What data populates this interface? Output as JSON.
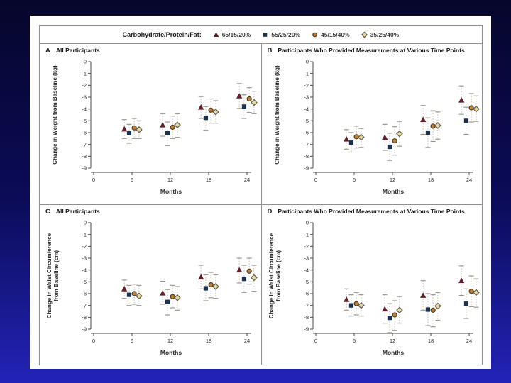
{
  "slide": {
    "background_top_color": "#06062c",
    "background_bottom_color": "#2323b8",
    "card_color": "#fefefe"
  },
  "legend": {
    "label": "Carbohydrate/Protein/Fat:",
    "items": [
      {
        "label": "65/15/20%",
        "marker": "triangle",
        "fill": "#60222a",
        "stroke": "#60222a"
      },
      {
        "label": "55/25/20%",
        "marker": "square",
        "fill": "#1c3350",
        "stroke": "#1c3350"
      },
      {
        "label": "45/15/40%",
        "marker": "circle",
        "fill": "#c08136",
        "stroke": "#4e3b1c"
      },
      {
        "label": "35/25/40%",
        "marker": "diamond",
        "fill": "#e6d9a4",
        "stroke": "#615c4b"
      }
    ]
  },
  "chart_data": [
    {
      "type": "scatter",
      "letter": "A",
      "title": "All Participants",
      "ylabel_lines": [
        "Change in Weight from Baseline (kg)"
      ],
      "xlabel": "Months",
      "ylim": [
        0,
        -9
      ],
      "yticks": [
        0,
        -1,
        -2,
        -3,
        -4,
        -5,
        -6,
        -7,
        -8,
        -9
      ],
      "xticks": [
        0,
        6,
        12,
        18,
        24
      ],
      "x": [
        6,
        12,
        18,
        24
      ],
      "series": [
        {
          "name": "65/15/20%",
          "points": [
            {
              "y": -5.7,
              "lo": -6.5,
              "hi": -4.9
            },
            {
              "y": -5.35,
              "lo": -6.3,
              "hi": -4.4
            },
            {
              "y": -3.85,
              "lo": -4.8,
              "hi": -2.95
            },
            {
              "y": -2.9,
              "lo": -3.95,
              "hi": -1.85
            }
          ]
        },
        {
          "name": "55/25/20%",
          "points": [
            {
              "y": -6.05,
              "lo": -6.9,
              "hi": -5.3
            },
            {
              "y": -6.05,
              "lo": -7.1,
              "hi": -5.1
            },
            {
              "y": -4.75,
              "lo": -5.8,
              "hi": -3.8
            },
            {
              "y": -3.8,
              "lo": -4.8,
              "hi": -2.8
            }
          ]
        },
        {
          "name": "45/15/40%",
          "points": [
            {
              "y": -5.6,
              "lo": -6.5,
              "hi": -4.8
            },
            {
              "y": -5.55,
              "lo": -6.5,
              "hi": -4.6
            },
            {
              "y": -4.1,
              "lo": -5.2,
              "hi": -3.15
            },
            {
              "y": -3.15,
              "lo": -4.3,
              "hi": -2.2
            }
          ]
        },
        {
          "name": "35/25/40%",
          "points": [
            {
              "y": -5.75,
              "lo": -6.5,
              "hi": -5.0
            },
            {
              "y": -5.35,
              "lo": -6.4,
              "hi": -4.4
            },
            {
              "y": -4.25,
              "lo": -5.2,
              "hi": -3.3
            },
            {
              "y": -3.45,
              "lo": -4.4,
              "hi": -2.5
            }
          ]
        }
      ]
    },
    {
      "type": "scatter",
      "letter": "B",
      "title": "Participants Who Provided Measurements at Various Time Points",
      "ylabel_lines": [
        "Change in Weight from Baseline (kg)"
      ],
      "xlabel": "Months",
      "ylim": [
        0,
        -9
      ],
      "yticks": [
        0,
        -1,
        -2,
        -3,
        -4,
        -5,
        -6,
        -7,
        -8,
        -9
      ],
      "xticks": [
        0,
        6,
        12,
        18,
        24
      ],
      "x": [
        6,
        12,
        18,
        24
      ],
      "series": [
        {
          "name": "65/15/20%",
          "points": [
            {
              "y": -6.55,
              "lo": -7.4,
              "hi": -5.75
            },
            {
              "y": -6.4,
              "lo": -7.5,
              "hi": -5.3
            },
            {
              "y": -4.9,
              "lo": -6.15,
              "hi": -3.7
            },
            {
              "y": -3.25,
              "lo": -4.45,
              "hi": -2.05
            }
          ]
        },
        {
          "name": "55/25/20%",
          "points": [
            {
              "y": -6.85,
              "lo": -7.65,
              "hi": -6.0
            },
            {
              "y": -7.2,
              "lo": -8.35,
              "hi": -6.05
            },
            {
              "y": -6.0,
              "lo": -7.25,
              "hi": -4.75
            },
            {
              "y": -5.0,
              "lo": -6.15,
              "hi": -3.85
            }
          ]
        },
        {
          "name": "45/15/40%",
          "points": [
            {
              "y": -6.35,
              "lo": -7.3,
              "hi": -5.45
            },
            {
              "y": -6.7,
              "lo": -7.9,
              "hi": -5.5
            },
            {
              "y": -5.45,
              "lo": -6.75,
              "hi": -4.15
            },
            {
              "y": -3.9,
              "lo": -5.1,
              "hi": -2.7
            }
          ]
        },
        {
          "name": "35/25/40%",
          "points": [
            {
              "y": -6.4,
              "lo": -7.25,
              "hi": -5.65
            },
            {
              "y": -6.1,
              "lo": -7.15,
              "hi": -5.05
            },
            {
              "y": -5.4,
              "lo": -6.55,
              "hi": -4.25
            },
            {
              "y": -4.0,
              "lo": -5.05,
              "hi": -2.9
            }
          ]
        }
      ]
    },
    {
      "type": "scatter",
      "letter": "C",
      "title": "All Participants",
      "ylabel_lines": [
        "Change in Waist Circumference",
        "from Baseline (cm)"
      ],
      "xlabel": "Months",
      "ylim": [
        0,
        -9
      ],
      "yticks": [
        0,
        -1,
        -2,
        -3,
        -4,
        -5,
        -6,
        -7,
        -8,
        -9
      ],
      "xticks": [
        0,
        6,
        12,
        18,
        24
      ],
      "x": [
        6,
        12,
        18,
        24
      ],
      "series": [
        {
          "name": "65/15/20%",
          "points": [
            {
              "y": -5.6,
              "lo": -6.4,
              "hi": -4.85
            },
            {
              "y": -5.95,
              "lo": -6.9,
              "hi": -4.95
            },
            {
              "y": -4.6,
              "lo": -5.6,
              "hi": -3.6
            },
            {
              "y": -4.0,
              "lo": -5.1,
              "hi": -3.0
            }
          ]
        },
        {
          "name": "55/25/20%",
          "points": [
            {
              "y": -6.1,
              "lo": -7.0,
              "hi": -5.3
            },
            {
              "y": -6.7,
              "lo": -7.8,
              "hi": -5.65
            },
            {
              "y": -5.55,
              "lo": -6.6,
              "hi": -4.4
            },
            {
              "y": -4.75,
              "lo": -5.9,
              "hi": -3.6
            }
          ]
        },
        {
          "name": "45/15/40%",
          "points": [
            {
              "y": -6.0,
              "lo": -6.9,
              "hi": -5.2
            },
            {
              "y": -6.25,
              "lo": -7.2,
              "hi": -5.3
            },
            {
              "y": -5.25,
              "lo": -6.35,
              "hi": -4.2
            },
            {
              "y": -4.1,
              "lo": -5.2,
              "hi": -3.0
            }
          ]
        },
        {
          "name": "35/25/40%",
          "points": [
            {
              "y": -6.2,
              "lo": -7.0,
              "hi": -5.3
            },
            {
              "y": -6.35,
              "lo": -7.4,
              "hi": -5.4
            },
            {
              "y": -5.4,
              "lo": -6.4,
              "hi": -4.4
            },
            {
              "y": -4.65,
              "lo": -5.8,
              "hi": -3.6
            }
          ]
        }
      ]
    },
    {
      "type": "scatter",
      "letter": "D",
      "title": "Participants Who Provided Measurements at Various Time Points",
      "ylabel_lines": [
        "Change in Waist Circumference",
        "from Baseline (cm)"
      ],
      "xlabel": "Months",
      "ylim": [
        0,
        -9
      ],
      "yticks": [
        0,
        -1,
        -2,
        -3,
        -4,
        -5,
        -6,
        -7,
        -8,
        -9
      ],
      "xticks": [
        0,
        6,
        12,
        18,
        24
      ],
      "x": [
        6,
        12,
        18,
        24
      ],
      "series": [
        {
          "name": "65/15/20%",
          "points": [
            {
              "y": -6.5,
              "lo": -7.4,
              "hi": -5.6
            },
            {
              "y": -7.3,
              "lo": -8.5,
              "hi": -6.1
            },
            {
              "y": -6.15,
              "lo": -7.4,
              "hi": -4.9
            },
            {
              "y": -4.9,
              "lo": -6.15,
              "hi": -3.65
            }
          ]
        },
        {
          "name": "55/25/20%",
          "points": [
            {
              "y": -7.0,
              "lo": -7.9,
              "hi": -6.1
            },
            {
              "y": -8.05,
              "lo": -9.3,
              "hi": -6.85
            },
            {
              "y": -7.35,
              "lo": -8.7,
              "hi": -6.0
            },
            {
              "y": -6.85,
              "lo": -8.1,
              "hi": -5.6
            }
          ]
        },
        {
          "name": "45/15/40%",
          "points": [
            {
              "y": -6.85,
              "lo": -7.8,
              "hi": -5.9
            },
            {
              "y": -7.8,
              "lo": -9.1,
              "hi": -6.6
            },
            {
              "y": -7.4,
              "lo": -8.8,
              "hi": -6.1
            },
            {
              "y": -5.8,
              "lo": -7.1,
              "hi": -4.5
            }
          ]
        },
        {
          "name": "35/25/40%",
          "points": [
            {
              "y": -7.0,
              "lo": -7.9,
              "hi": -6.1
            },
            {
              "y": -7.4,
              "lo": -8.5,
              "hi": -6.25
            },
            {
              "y": -7.05,
              "lo": -8.25,
              "hi": -5.9
            },
            {
              "y": -5.9,
              "lo": -7.15,
              "hi": -4.75
            }
          ]
        }
      ]
    }
  ]
}
